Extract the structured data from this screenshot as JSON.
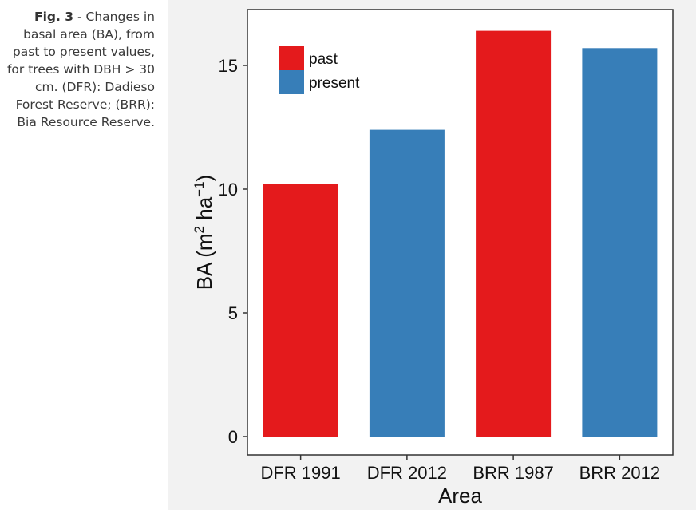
{
  "caption": {
    "label": "Fig. 3",
    "text": " - Changes in basal area (BA), from past to present values, for trees with DBH > 30 cm. (DFR): Dadieso Forest Reserve; (BRR): Bia Resource Reserve."
  },
  "chart_data": {
    "type": "bar",
    "categories": [
      "DFR 1991",
      "DFR 2012",
      "BRR 1987",
      "BRR 2012"
    ],
    "values": [
      10.2,
      12.4,
      16.4,
      15.7
    ],
    "bar_groups": [
      "past",
      "present",
      "past",
      "present"
    ],
    "xlabel": "Area",
    "ylabel": "BA (m² ha⁻¹)",
    "ylabel_parts": {
      "prefix": "BA (m",
      "sup1": "2",
      "middle": " ha",
      "sup2": "−1",
      "suffix": ")"
    },
    "ylim": [
      0,
      16.7
    ],
    "yticks": [
      0,
      5,
      10,
      15
    ],
    "legend": {
      "items": [
        "past",
        "present"
      ],
      "position": "top-left"
    },
    "colors": {
      "past": "#e41a1c",
      "present": "#377eb8"
    },
    "grid": false
  }
}
